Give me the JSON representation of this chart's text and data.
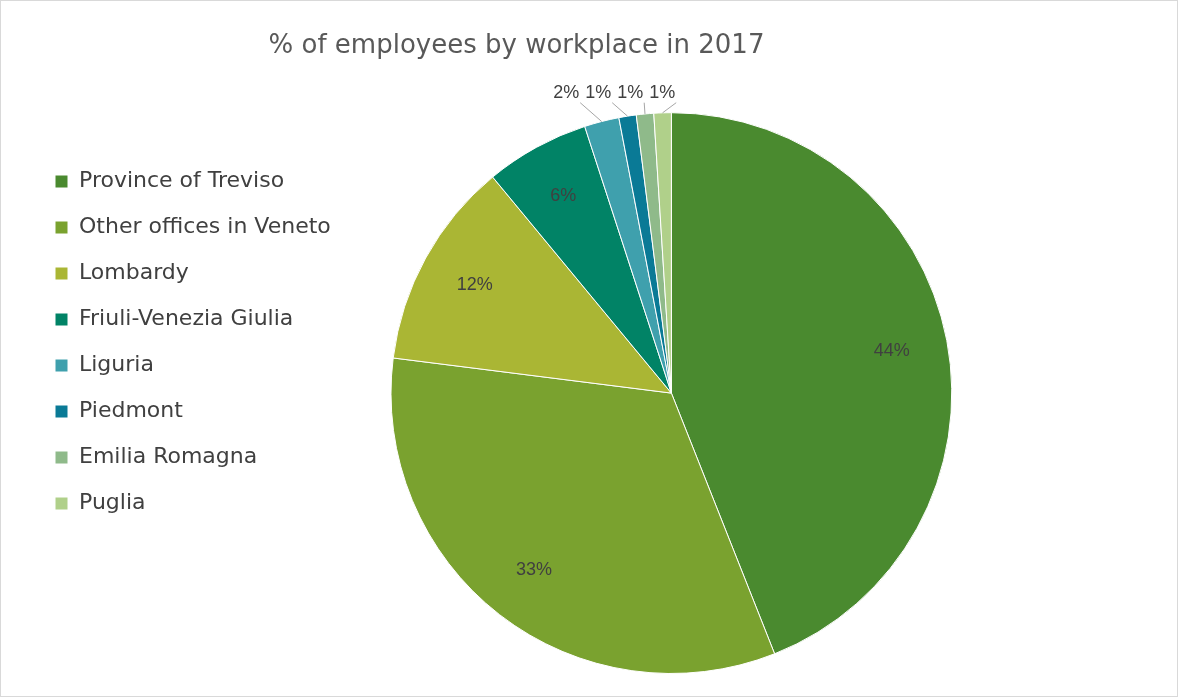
{
  "chart_data": {
    "type": "pie",
    "title": "% of employees by workplace in 2017",
    "categories": [
      "Province of Treviso",
      "Other offices in Veneto",
      "Lombardy",
      "Friuli-Venezia Giulia",
      "Liguria",
      "Piedmont",
      "Emilia Romagna",
      "Puglia"
    ],
    "values": [
      44,
      33,
      12,
      6,
      2,
      1,
      1,
      1
    ],
    "value_labels": [
      "44%",
      "33%",
      "12%",
      "6%",
      "2%",
      "1%",
      "1%",
      "1%"
    ],
    "colors": [
      "#4a8a2f",
      "#7aa22f",
      "#aab634",
      "#018366",
      "#3fa0ad",
      "#0a7a96",
      "#8fba8a",
      "#b0d08a"
    ],
    "legend": "left"
  }
}
